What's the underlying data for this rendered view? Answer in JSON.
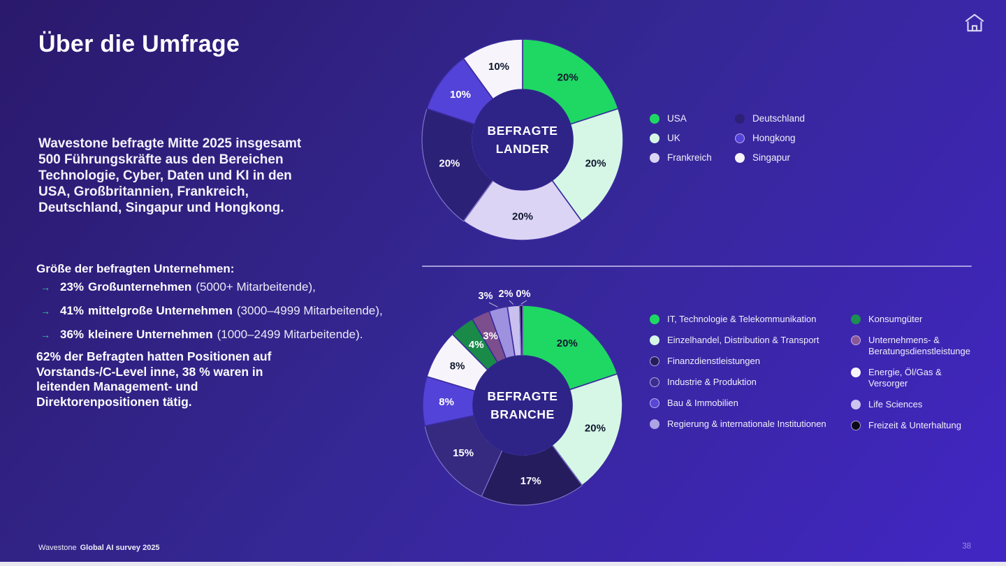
{
  "slide": {
    "title": "Über die Umfrage",
    "footer_brand": "Wavestone",
    "footer_title": "Global AI survey 2025",
    "page_number": "38"
  },
  "intro_text": "Wavestone befragte Mitte 2025 insgesamt\n500 Führungskräfte aus den Bereichen\nTechnologie, Cyber, Daten und KI in den\nUSA, Großbritannien, Frankreich,\nDeutschland, Singapur und Hongkong.",
  "company_sizes": {
    "heading": "Größe der befragten Unternehmen:",
    "arrow": "→",
    "items": [
      {
        "pct": "23%",
        "bold": "Großunternehmen",
        "rest": "(5000+ Mitarbeitende),"
      },
      {
        "pct": "41%",
        "bold": "mittelgroße Unternehmen",
        "rest": "(3000–4999 Mitarbeitende),"
      },
      {
        "pct": "36%",
        "bold": "kleinere Unternehmen",
        "rest": "(1000–2499 Mitarbeitende)."
      }
    ]
  },
  "positions_text": "62% der Befragten hatten Positionen auf\nVorstands-/C-Level inne, 38 % waren in\nleitenden Management- und\nDirektorenpositionen tätig.",
  "colors": {
    "background_dark": "#2a196b",
    "background_light": "#4226c4",
    "accent_green": "#1fd863",
    "accent_teal_arrow": "#34c9a0",
    "donut_hole": "#2e2487",
    "dark_label_text": "#10172f"
  },
  "chart_data": [
    {
      "type": "donut",
      "name": "befragte-laender",
      "center_label": "BEFRAGTE\nLANDER",
      "legend_position": "right, two columns",
      "segments": [
        {
          "label": "USA",
          "value": 20,
          "pct": "20%",
          "color": "#1fd863",
          "text": "#10172f"
        },
        {
          "label": "UK",
          "value": 20,
          "pct": "20%",
          "color": "#d6f7e6",
          "text": "#10172f"
        },
        {
          "label": "Frankreich",
          "value": 20,
          "pct": "20%",
          "color": "#dcd4f4",
          "text": "#10172f"
        },
        {
          "label": "Deutschland",
          "value": 20,
          "pct": "20%",
          "color": "#2b2177",
          "text": "#ffffff",
          "ring": true
        },
        {
          "label": "Hongkong",
          "value": 10,
          "pct": "10%",
          "color": "#5443d8",
          "text": "#ffffff",
          "swatch_ring": true
        },
        {
          "label": "Singapur",
          "value": 10,
          "pct": "10%",
          "color": "#f7f5fb",
          "text": "#10172f"
        }
      ],
      "legend_columns": [
        [
          0,
          1,
          2
        ],
        [
          3,
          4,
          5
        ]
      ]
    },
    {
      "type": "donut",
      "name": "befragte-branche",
      "center_label": "BEFRAGTE\nBRANCHE",
      "legend_position": "right, two columns",
      "segments": [
        {
          "label": "IT, Technologie & Telekommunikation",
          "value": 20,
          "pct": "20%",
          "color": "#1fd863",
          "text": "#10172f"
        },
        {
          "label": "Einzelhandel, Distribution & Transport",
          "value": 20,
          "pct": "20%",
          "color": "#d6f7e6",
          "text": "#10172f"
        },
        {
          "label": "Finanzdienstleistungen",
          "value": 17,
          "pct": "17%",
          "color": "#251c5e",
          "text": "#ffffff",
          "ring": true,
          "swatch_ring": true
        },
        {
          "label": "Industrie & Produktion",
          "value": 15,
          "pct": "15%",
          "color": "#352a80",
          "text": "#ffffff",
          "ring": true,
          "swatch": "#3a2d90",
          "swatch_ring": true
        },
        {
          "label": "Bau & Immobilien",
          "value": 8,
          "pct": "8%",
          "color": "#5443d8",
          "text": "#ffffff",
          "swatch": "#5846d6",
          "swatch_ring": true
        },
        {
          "label": "Regierung & internationale Institutionen",
          "value": 8,
          "pct": "8%",
          "color": "#f7f5fb",
          "text": "#10172f",
          "swatch": "#b0a3e5"
        },
        {
          "label": "Konsumgüter",
          "value": 4,
          "pct": "4%",
          "color": "#1a8a49",
          "text": "#ffffff",
          "swatch": "#1b9050"
        },
        {
          "label": "Unternehmens- &\nBeratungsdienstleistunge",
          "value": 3,
          "pct": "3%",
          "color": "#7d4e8d",
          "text": "#ffffff",
          "swatch": "#8a5799",
          "swatch_ring": true
        },
        {
          "label": "Energie, Öl/Gas &\nVersorger",
          "value": 3,
          "pct": "3%",
          "color": "#9e91e0",
          "text": "#ffffff",
          "swatch": "#f7f5fb",
          "outside": true,
          "out_xy": [
            107,
            14
          ]
        },
        {
          "label": "Life Sciences",
          "value": 2,
          "pct": "2%",
          "color": "#c9c0ef",
          "text": "#ffffff",
          "swatch": "#cdc5f0",
          "outside": true,
          "out_xy": [
            136,
            11
          ]
        },
        {
          "label": "Freizeit & Unterhaltung",
          "value": 0,
          "pct": "0%",
          "color": "#0c0918",
          "text": "#ffffff",
          "ring": true,
          "swatch": "#0c0918",
          "swatch_ring": true,
          "outside": true,
          "out_xy": [
            161,
            11
          ]
        }
      ],
      "legend_columns": [
        [
          0,
          1,
          2,
          3,
          4,
          5
        ],
        [
          6,
          7,
          8,
          9,
          10
        ]
      ]
    }
  ]
}
